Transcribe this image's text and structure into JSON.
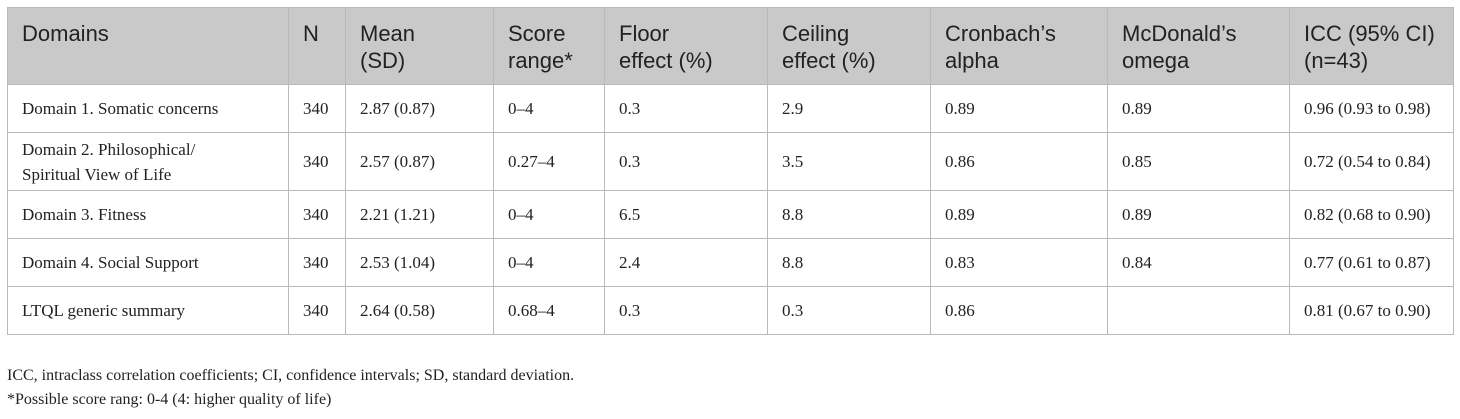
{
  "table": {
    "headers": [
      [
        "Domains"
      ],
      [
        "N"
      ],
      [
        "Mean",
        "(SD)"
      ],
      [
        "Score",
        "range*"
      ],
      [
        "Floor",
        "effect (%)"
      ],
      [
        "Ceiling",
        "effect (%)"
      ],
      [
        "Cronbach’s",
        "alpha"
      ],
      [
        "McDonald’s",
        "omega"
      ],
      [
        "ICC (95% CI)",
        "(n=43)"
      ]
    ],
    "rows": [
      {
        "domain": [
          "Domain 1. Somatic concerns"
        ],
        "n": "340",
        "mean": "2.87 (0.87)",
        "range": "0–4",
        "floor": "0.3",
        "ceiling": "2.9",
        "alpha": "0.89",
        "omega": "0.89",
        "icc": "0.96 (0.93 to 0.98)"
      },
      {
        "domain": [
          "Domain 2. Philosophical/",
          "Spiritual View of Life"
        ],
        "n": "340",
        "mean": "2.57 (0.87)",
        "range": "0.27–4",
        "floor": "0.3",
        "ceiling": "3.5",
        "alpha": "0.86",
        "omega": "0.85",
        "icc": "0.72 (0.54 to 0.84)"
      },
      {
        "domain": [
          "Domain 3. Fitness"
        ],
        "n": "340",
        "mean": "2.21 (1.21)",
        "range": "0–4",
        "floor": "6.5",
        "ceiling": "8.8",
        "alpha": "0.89",
        "omega": "0.89",
        "icc": "0.82 (0.68 to 0.90)"
      },
      {
        "domain": [
          "Domain 4. Social Support"
        ],
        "n": "340",
        "mean": "2.53 (1.04)",
        "range": "0–4",
        "floor": "2.4",
        "ceiling": "8.8",
        "alpha": "0.83",
        "omega": "0.84",
        "icc": "0.77 (0.61 to 0.87)"
      },
      {
        "domain": [
          "LTQL generic summary"
        ],
        "n": "340",
        "mean": "2.64 (0.58)",
        "range": "0.68–4",
        "floor": "0.3",
        "ceiling": "0.3",
        "alpha": "0.86",
        "omega": "",
        "icc": "0.81 (0.67 to 0.90)"
      }
    ]
  },
  "notes": {
    "abbreviations": "ICC, intraclass correlation coefficients; CI, confidence intervals; SD, standard deviation.",
    "footnote": "*Possible score rang: 0-4 (4: higher quality of life)"
  }
}
